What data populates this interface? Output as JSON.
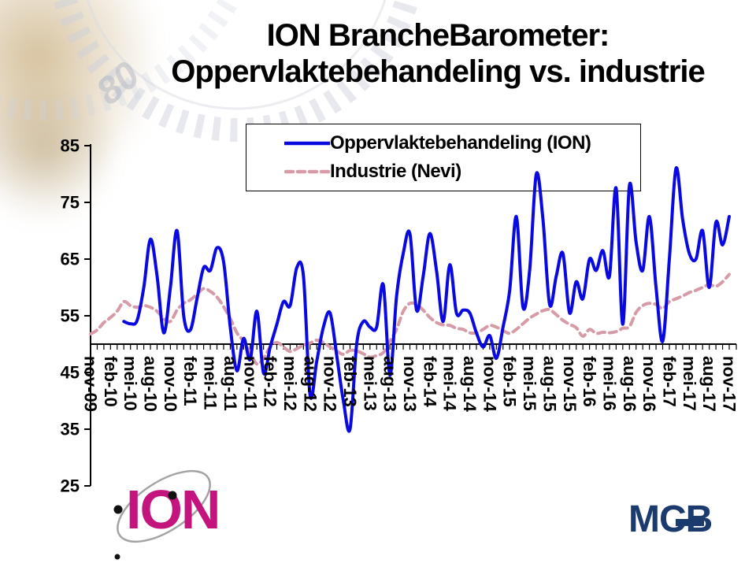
{
  "title": {
    "line1": "ION BrancheBarometer:",
    "line2": "Oppervlaktebehandeling vs. industrie"
  },
  "legend": {
    "items": [
      {
        "label": "Oppervlaktebehandeling (ION)",
        "color": "#0a0ae0",
        "style": "solid"
      },
      {
        "label": "Industrie (Nevi)",
        "color": "#d79ba7",
        "style": "dashed"
      }
    ]
  },
  "watermark": {
    "number": "80"
  },
  "logos": {
    "ion": {
      "text": "ION",
      "color": "#C4157F"
    },
    "mcb": {
      "text": "MCB",
      "color": "#1B3A6D"
    }
  },
  "chart_data": {
    "type": "line",
    "title": "ION BrancheBarometer: Oppervlaktebehandeling vs. industrie",
    "xlabel": "",
    "ylabel": "",
    "ylim": [
      25,
      85
    ],
    "baseline_value": 50,
    "grid": false,
    "legend_position": "top-center",
    "y_ticks": [
      85,
      75,
      65,
      55,
      45,
      35,
      25
    ],
    "x_tick_labels": [
      "nov-09",
      "feb-10",
      "mei-10",
      "aug-10",
      "nov-10",
      "feb-11",
      "mei-11",
      "aug-11",
      "nov-11",
      "feb-12",
      "mei-12",
      "aug-12",
      "nov-12",
      "feb-13",
      "mei-13",
      "aug-13",
      "nov-13",
      "feb-14",
      "mei-14",
      "aug-14",
      "nov-14",
      "feb-15",
      "mei-15",
      "aug-15",
      "nov-15",
      "feb-16",
      "mei-16",
      "aug-16",
      "nov-16",
      "feb-17",
      "mei-17",
      "aug-17",
      "nov-17"
    ],
    "months_between_labels": 3,
    "series": [
      {
        "name": "Oppervlaktebehandeling (ION)",
        "color": "#0a0ae0",
        "dash": "solid",
        "values": [
          null,
          null,
          null,
          null,
          null,
          54,
          53.6,
          54.2,
          60,
          68.5,
          62,
          52,
          60,
          70,
          55,
          52.5,
          58,
          63.5,
          63,
          67,
          64.5,
          53,
          45.3,
          51,
          47.3,
          55.8,
          44.9,
          49.5,
          53.5,
          57.5,
          56.8,
          63.5,
          62,
          41,
          47,
          53,
          55.5,
          48,
          40,
          35,
          50,
          54,
          53,
          53,
          60.5,
          44.5,
          58.5,
          66,
          69.5,
          56,
          62,
          69.5,
          63,
          54,
          64,
          55.5,
          56,
          55.5,
          52,
          49.5,
          51.5,
          47.5,
          53,
          59.5,
          72.5,
          56.5,
          63,
          80,
          72,
          57,
          62,
          66,
          55.5,
          61,
          58,
          65,
          63,
          66.5,
          62,
          77.5,
          53.5,
          78,
          68,
          63,
          72.5,
          60,
          50.5,
          65,
          81,
          72,
          66,
          65,
          70,
          60,
          71.5,
          67.5,
          72.5
        ]
      },
      {
        "name": "Industrie (Nevi)",
        "color": "#d79ba7",
        "dash": "dashed",
        "values": [
          51.8,
          52.5,
          53.8,
          54.7,
          55.8,
          57.5,
          56.8,
          56.5,
          56.8,
          56.5,
          55.8,
          54.5,
          54,
          56,
          57.2,
          57.8,
          58.8,
          59.8,
          59.3,
          58.3,
          56.6,
          54.5,
          52,
          50.5,
          48.5,
          46.5,
          47.5,
          49.5,
          50.3,
          49.5,
          48.7,
          49.2,
          49.8,
          50.2,
          50.7,
          50.3,
          49.5,
          48.8,
          48.2,
          48.9,
          48.8,
          48.3,
          47.7,
          48,
          48.5,
          50.5,
          52.6,
          55.8,
          57.2,
          57,
          56,
          54.7,
          53.8,
          53.4,
          53.3,
          52.8,
          52.6,
          52,
          52,
          52.6,
          53.3,
          53,
          52.4,
          51.9,
          52.6,
          53.6,
          54.6,
          55.3,
          55.9,
          56.1,
          55.2,
          54.2,
          53.5,
          52.9,
          51.4,
          52.6,
          51.9,
          52.1,
          52,
          52.2,
          52.8,
          53.1,
          55.6,
          56.8,
          57.2,
          57,
          56.3,
          57.5,
          58,
          58.5,
          59.1,
          59.5,
          60,
          60.5,
          60.2,
          61,
          62.3
        ]
      }
    ]
  }
}
